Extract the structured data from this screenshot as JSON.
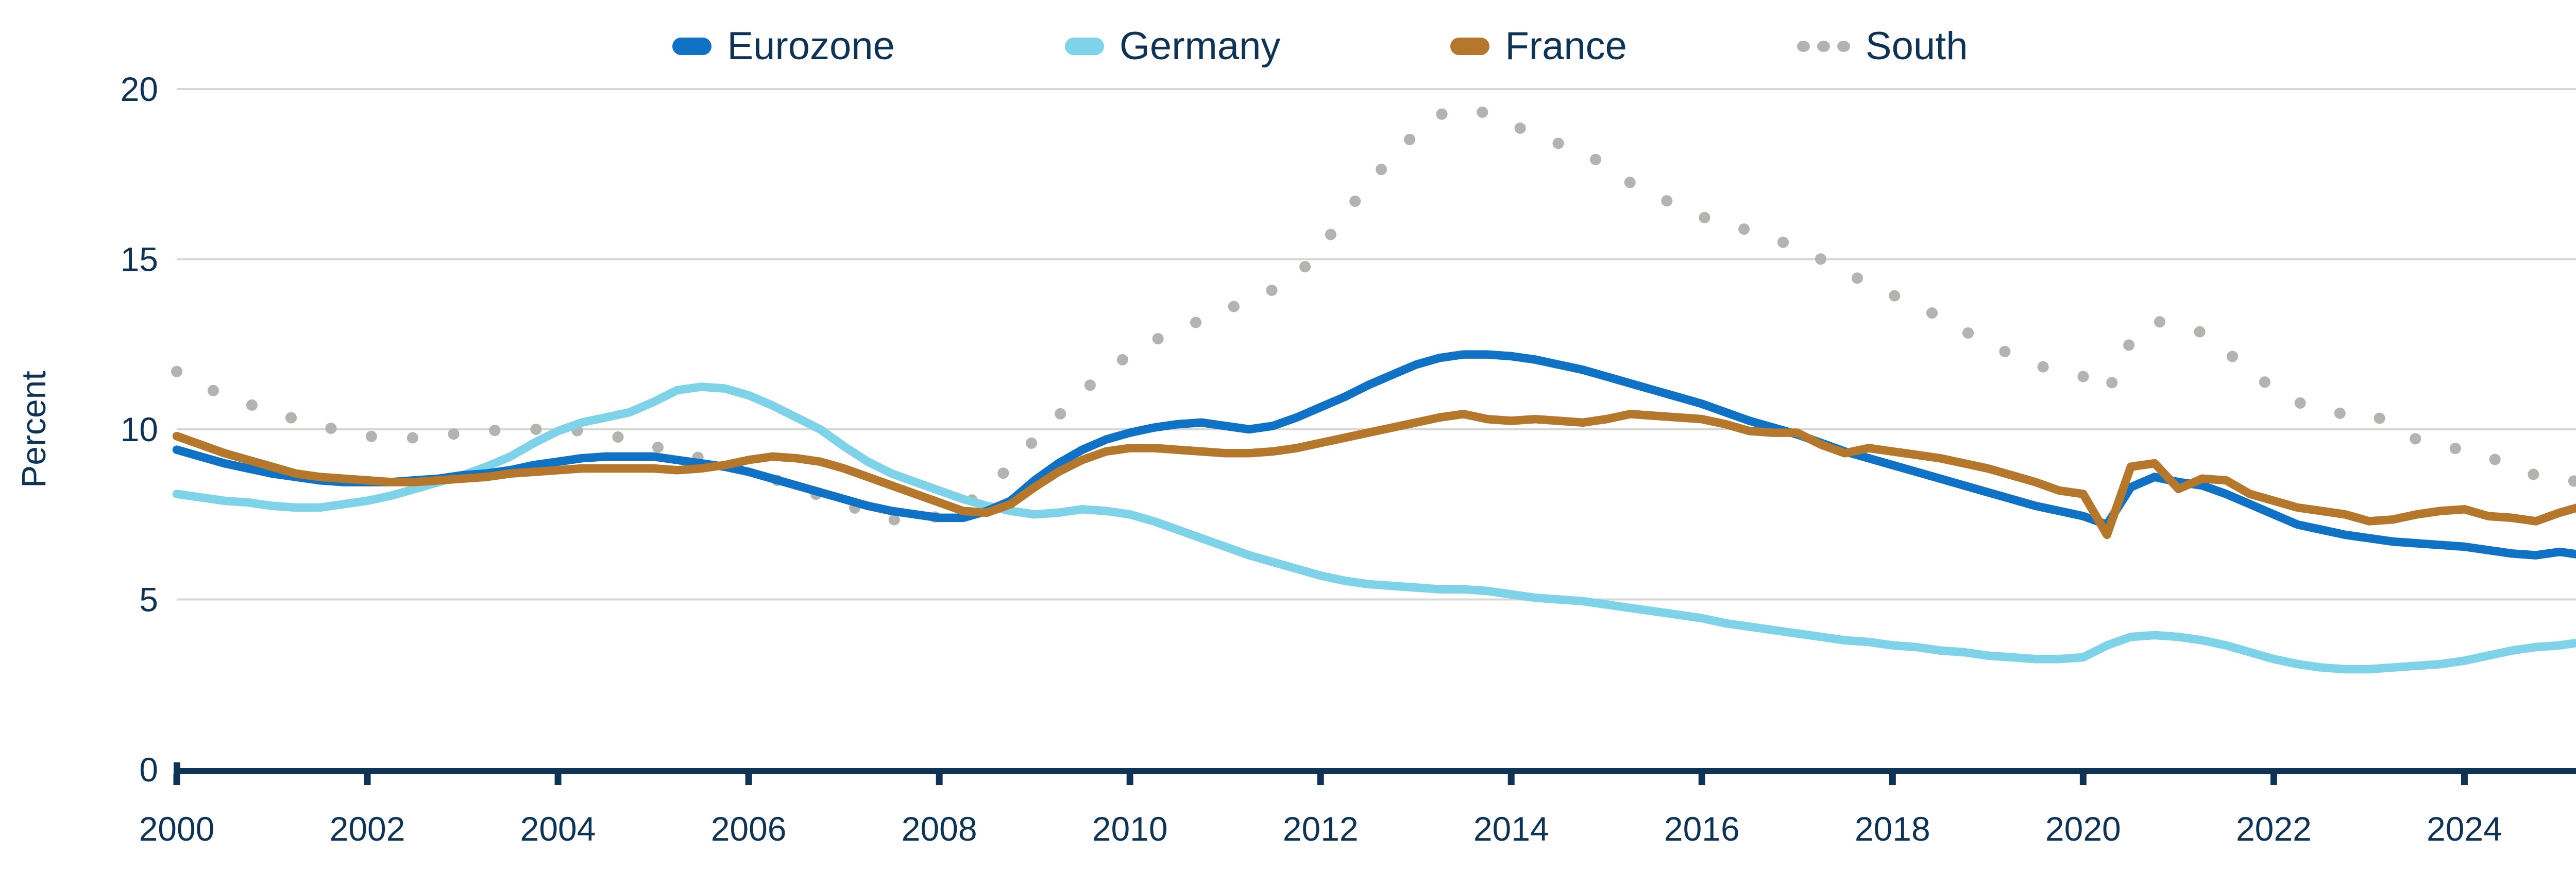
{
  "colors": {
    "navy_text": "#0e3355",
    "gridline": "#d6d6d4",
    "background": "#ffffff"
  },
  "chart_data": {
    "type": "line",
    "title": "",
    "xlabel": "",
    "ylabel": "Percent",
    "grid": "horizontal",
    "legend_position": "top-center",
    "xlim": [
      2000,
      2025.63
    ],
    "ylim": [
      0,
      20
    ],
    "yticks": [
      0,
      5,
      10,
      15,
      20
    ],
    "ytick_labels": [
      "0",
      "5",
      "10",
      "15",
      "20"
    ],
    "xticks": [
      2000,
      2002,
      2004,
      2006,
      2008,
      2010,
      2012,
      2014,
      2016,
      2018,
      2020,
      2022,
      2024
    ],
    "xtick_labels": [
      "2000",
      "2002",
      "2004",
      "2006",
      "2008",
      "2010",
      "2012",
      "2014",
      "2016",
      "2018",
      "2020",
      "2022",
      "2024"
    ],
    "x_start": 2000,
    "x_step": 0.25,
    "series": [
      {
        "name": "Eurozone",
        "color": "#0f72c4",
        "style": "solid",
        "values": [
          9.4,
          9.2,
          9.0,
          8.85,
          8.7,
          8.6,
          8.5,
          8.45,
          8.45,
          8.45,
          8.5,
          8.55,
          8.65,
          8.7,
          8.8,
          8.95,
          9.05,
          9.15,
          9.2,
          9.2,
          9.2,
          9.1,
          9.0,
          8.9,
          8.75,
          8.55,
          8.35,
          8.15,
          7.95,
          7.75,
          7.6,
          7.5,
          7.4,
          7.4,
          7.6,
          7.9,
          8.5,
          9.0,
          9.4,
          9.7,
          9.9,
          10.05,
          10.15,
          10.2,
          10.1,
          10.0,
          10.1,
          10.35,
          10.65,
          10.95,
          11.3,
          11.6,
          11.9,
          12.1,
          12.2,
          12.2,
          12.15,
          12.05,
          11.9,
          11.75,
          11.55,
          11.35,
          11.15,
          10.95,
          10.75,
          10.5,
          10.25,
          10.05,
          9.85,
          9.6,
          9.35,
          9.15,
          8.95,
          8.75,
          8.55,
          8.35,
          8.15,
          7.95,
          7.75,
          7.6,
          7.45,
          7.2,
          8.3,
          8.6,
          8.45,
          8.35,
          8.1,
          7.8,
          7.5,
          7.2,
          7.05,
          6.9,
          6.8,
          6.7,
          6.65,
          6.6,
          6.55,
          6.45,
          6.35,
          6.3,
          6.4,
          6.3,
          6.2
        ]
      },
      {
        "name": "Germany",
        "color": "#7ed3e8",
        "style": "solid",
        "values": [
          8.1,
          8.0,
          7.9,
          7.85,
          7.75,
          7.7,
          7.7,
          7.8,
          7.9,
          8.05,
          8.25,
          8.45,
          8.65,
          8.9,
          9.2,
          9.6,
          9.95,
          10.2,
          10.35,
          10.5,
          10.8,
          11.15,
          11.25,
          11.2,
          11.0,
          10.7,
          10.35,
          10.0,
          9.5,
          9.05,
          8.7,
          8.45,
          8.2,
          7.95,
          7.75,
          7.6,
          7.5,
          7.55,
          7.65,
          7.6,
          7.5,
          7.3,
          7.05,
          6.8,
          6.55,
          6.3,
          6.1,
          5.9,
          5.7,
          5.55,
          5.45,
          5.4,
          5.35,
          5.3,
          5.3,
          5.25,
          5.15,
          5.05,
          5.0,
          4.95,
          4.85,
          4.75,
          4.65,
          4.55,
          4.45,
          4.3,
          4.2,
          4.1,
          4.0,
          3.9,
          3.8,
          3.75,
          3.65,
          3.6,
          3.5,
          3.45,
          3.35,
          3.3,
          3.25,
          3.25,
          3.3,
          3.65,
          3.9,
          3.95,
          3.9,
          3.8,
          3.65,
          3.45,
          3.25,
          3.1,
          3.0,
          2.95,
          2.95,
          3.0,
          3.05,
          3.1,
          3.2,
          3.35,
          3.5,
          3.6,
          3.65,
          3.75,
          3.75
        ]
      },
      {
        "name": "France",
        "color": "#b5772b",
        "style": "solid",
        "values": [
          9.8,
          9.55,
          9.3,
          9.1,
          8.9,
          8.7,
          8.6,
          8.55,
          8.5,
          8.45,
          8.45,
          8.5,
          8.55,
          8.6,
          8.7,
          8.75,
          8.8,
          8.85,
          8.85,
          8.85,
          8.85,
          8.8,
          8.85,
          8.95,
          9.1,
          9.2,
          9.15,
          9.05,
          8.85,
          8.6,
          8.35,
          8.1,
          7.85,
          7.6,
          7.55,
          7.8,
          8.3,
          8.75,
          9.1,
          9.35,
          9.45,
          9.45,
          9.4,
          9.35,
          9.3,
          9.3,
          9.35,
          9.45,
          9.6,
          9.75,
          9.9,
          10.05,
          10.2,
          10.35,
          10.45,
          10.3,
          10.25,
          10.3,
          10.25,
          10.2,
          10.3,
          10.45,
          10.4,
          10.35,
          10.3,
          10.15,
          9.95,
          9.9,
          9.9,
          9.55,
          9.3,
          9.45,
          9.35,
          9.25,
          9.15,
          9.0,
          8.85,
          8.65,
          8.45,
          8.2,
          8.1,
          6.9,
          8.9,
          9.0,
          8.25,
          8.55,
          8.5,
          8.1,
          7.9,
          7.7,
          7.6,
          7.5,
          7.3,
          7.35,
          7.5,
          7.6,
          7.65,
          7.45,
          7.4,
          7.3,
          7.55,
          7.75,
          7.65
        ]
      },
      {
        "name": "South",
        "color": "#b3b3af",
        "style": "dotted",
        "values": [
          11.7,
          11.3,
          11.0,
          10.75,
          10.5,
          10.3,
          10.1,
          9.95,
          9.8,
          9.75,
          9.75,
          9.8,
          9.9,
          9.95,
          10.0,
          10.0,
          10.0,
          9.95,
          9.85,
          9.7,
          9.5,
          9.35,
          9.15,
          9.0,
          8.8,
          8.55,
          8.3,
          8.05,
          7.8,
          7.55,
          7.35,
          7.3,
          7.45,
          7.7,
          8.3,
          8.9,
          9.7,
          10.4,
          11.1,
          11.7,
          12.2,
          12.6,
          12.95,
          13.2,
          13.5,
          13.8,
          14.1,
          14.5,
          15.3,
          16.3,
          17.2,
          18.0,
          18.7,
          19.25,
          19.4,
          19.3,
          19.0,
          18.6,
          18.4,
          18.2,
          17.7,
          17.25,
          16.9,
          16.55,
          16.25,
          16.0,
          15.85,
          15.6,
          15.35,
          15.0,
          14.6,
          14.3,
          13.95,
          13.65,
          13.3,
          12.9,
          12.5,
          12.2,
          11.9,
          11.7,
          11.55,
          11.05,
          12.6,
          13.2,
          13.0,
          12.85,
          12.3,
          11.7,
          11.2,
          10.8,
          10.55,
          10.45,
          10.5,
          10.1,
          9.7,
          9.5,
          9.4,
          9.2,
          8.9,
          8.65,
          8.6,
          8.4,
          8.25
        ]
      }
    ]
  }
}
